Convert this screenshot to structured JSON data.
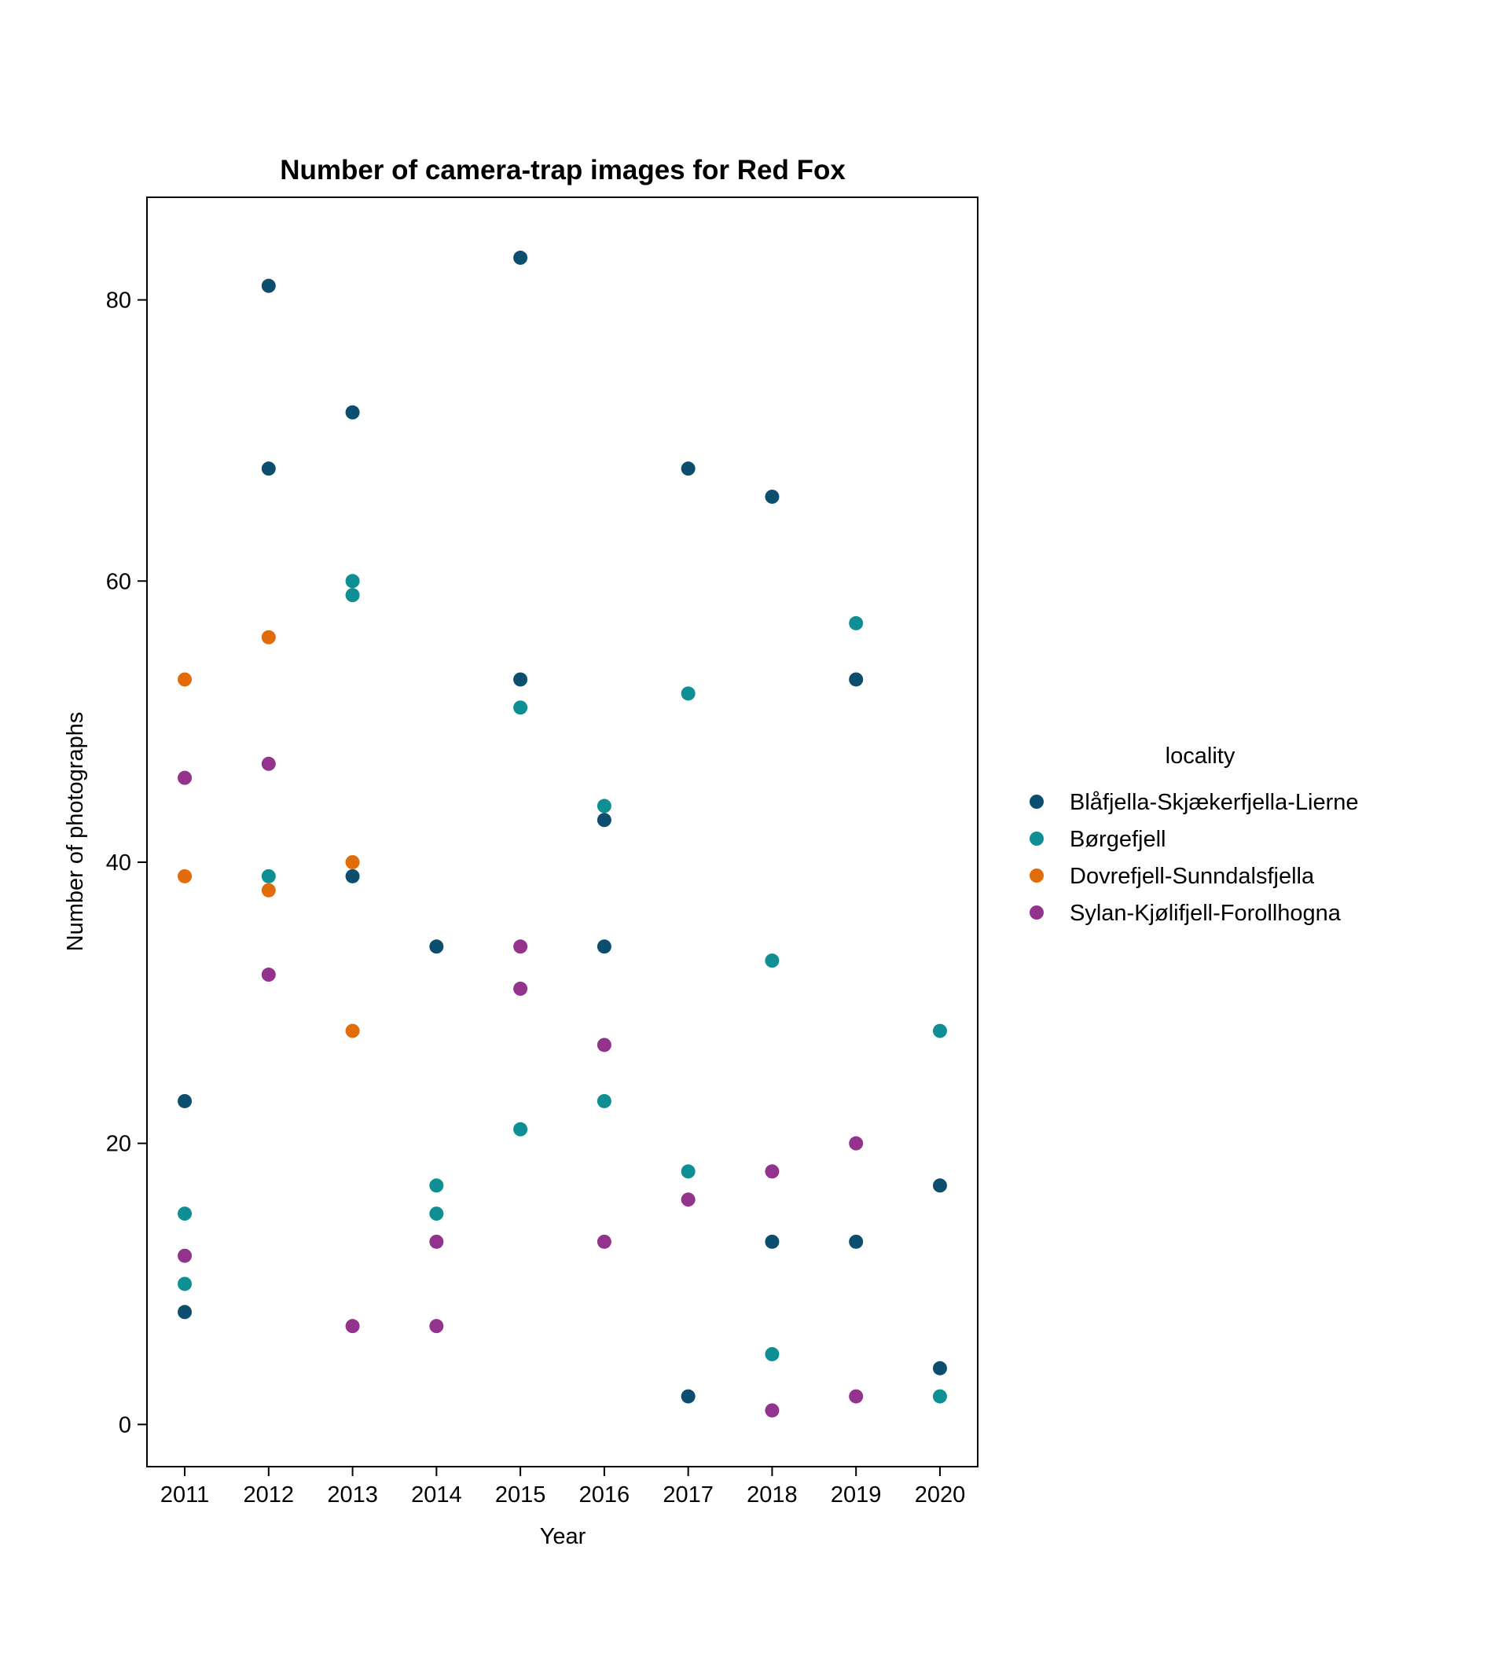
{
  "chart_data": {
    "type": "scatter",
    "title": "Number of camera-trap images for Red Fox",
    "xlabel": "Year",
    "ylabel": "Number of photographs",
    "x_ticks": [
      2011,
      2012,
      2013,
      2014,
      2015,
      2016,
      2017,
      2018,
      2019,
      2020
    ],
    "y_ticks": [
      0,
      20,
      40,
      60,
      80
    ],
    "xlim": [
      2010.55,
      2020.45
    ],
    "ylim": [
      -3,
      87.3
    ],
    "grid": false,
    "legend": {
      "title": "locality",
      "placement": "right"
    },
    "series": [
      {
        "name": "Blåfjella-Skjækerfjella-Lierne",
        "color": "#0d4d6e",
        "points": [
          [
            2011,
            23
          ],
          [
            2011,
            8
          ],
          [
            2012,
            81
          ],
          [
            2012,
            68
          ],
          [
            2013,
            72
          ],
          [
            2013,
            39
          ],
          [
            2014,
            34
          ],
          [
            2015,
            83
          ],
          [
            2015,
            53
          ],
          [
            2016,
            43
          ],
          [
            2016,
            34
          ],
          [
            2017,
            68
          ],
          [
            2017,
            2
          ],
          [
            2018,
            66
          ],
          [
            2018,
            13
          ],
          [
            2019,
            53
          ],
          [
            2019,
            13
          ],
          [
            2020,
            17
          ],
          [
            2020,
            4
          ]
        ]
      },
      {
        "name": "Børgefjell",
        "color": "#0e8f94",
        "points": [
          [
            2011,
            15
          ],
          [
            2011,
            10
          ],
          [
            2012,
            39
          ],
          [
            2013,
            60
          ],
          [
            2013,
            59
          ],
          [
            2014,
            17
          ],
          [
            2014,
            15
          ],
          [
            2015,
            51
          ],
          [
            2015,
            21
          ],
          [
            2016,
            44
          ],
          [
            2016,
            23
          ],
          [
            2017,
            52
          ],
          [
            2017,
            18
          ],
          [
            2018,
            33
          ],
          [
            2018,
            5
          ],
          [
            2019,
            57
          ],
          [
            2020,
            28
          ],
          [
            2020,
            2
          ]
        ]
      },
      {
        "name": "Dovrefjell-Sunndalsfjella",
        "color": "#e36c0a",
        "points": [
          [
            2011,
            53
          ],
          [
            2011,
            39
          ],
          [
            2012,
            56
          ],
          [
            2012,
            38
          ],
          [
            2013,
            40
          ],
          [
            2013,
            28
          ]
        ]
      },
      {
        "name": "Sylan-Kjølifjell-Forollhogna",
        "color": "#93338d",
        "points": [
          [
            2011,
            46
          ],
          [
            2011,
            12
          ],
          [
            2012,
            47
          ],
          [
            2012,
            32
          ],
          [
            2013,
            7
          ],
          [
            2014,
            13
          ],
          [
            2014,
            7
          ],
          [
            2015,
            34
          ],
          [
            2015,
            31
          ],
          [
            2016,
            27
          ],
          [
            2016,
            13
          ],
          [
            2017,
            16
          ],
          [
            2018,
            18
          ],
          [
            2018,
            1
          ],
          [
            2019,
            20
          ],
          [
            2019,
            2
          ]
        ]
      }
    ]
  }
}
